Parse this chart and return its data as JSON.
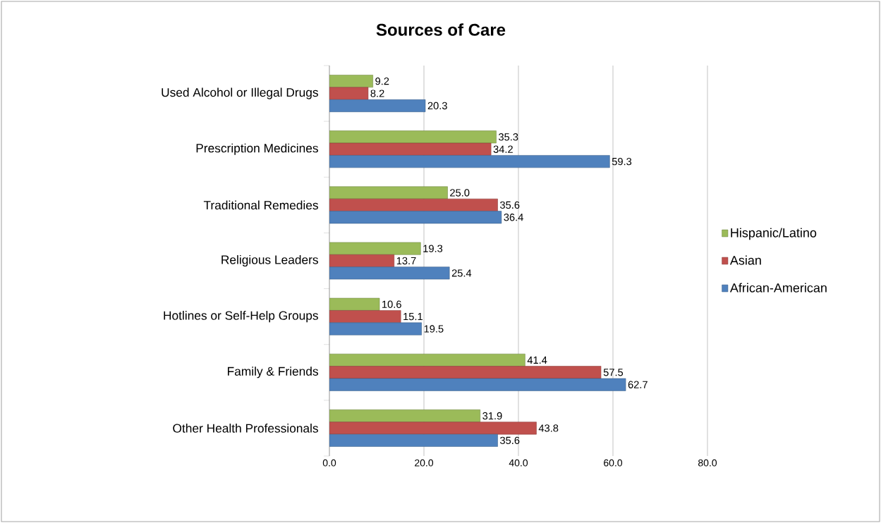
{
  "chart_data": {
    "type": "bar",
    "orientation": "horizontal",
    "title": "Sources of Care",
    "categories": [
      "Used Alcohol or Illegal Drugs",
      "Prescription Medicines",
      "Traditional Remedies",
      "Religious Leaders",
      "Hotlines or Self-Help Groups",
      "Family & Friends",
      "Other Health Professionals"
    ],
    "series": [
      {
        "name": "Hispanic/Latino",
        "color": "#9bbb59",
        "values": [
          9.2,
          35.3,
          25.0,
          19.3,
          10.6,
          41.4,
          31.9
        ],
        "value_labels": [
          "9.2",
          "35.3",
          "25.0",
          "19.3",
          "10.6",
          "41.4",
          "31.9"
        ]
      },
      {
        "name": "Asian",
        "color": "#c0504d",
        "values": [
          8.2,
          34.2,
          35.6,
          13.7,
          15.1,
          57.5,
          43.8
        ],
        "value_labels": [
          "8.2",
          "34.2",
          "35.6",
          "13.7",
          "15.1",
          "57.5",
          "43.8"
        ]
      },
      {
        "name": "African-American",
        "color": "#4f81bd",
        "values": [
          20.3,
          59.3,
          36.4,
          25.4,
          19.5,
          62.7,
          35.6
        ],
        "value_labels": [
          "20.3",
          "59.3",
          "36.4",
          "25.4",
          "19.5",
          "62.7",
          "35.6"
        ]
      }
    ],
    "xlim": [
      0,
      80
    ],
    "xticks": [
      {
        "value": 0,
        "label": "0.0"
      },
      {
        "value": 20,
        "label": "20.0"
      },
      {
        "value": 40,
        "label": "40.0"
      },
      {
        "value": 60,
        "label": "60.0"
      },
      {
        "value": 80,
        "label": "80.0"
      }
    ],
    "grid": "x",
    "legend": "right"
  }
}
